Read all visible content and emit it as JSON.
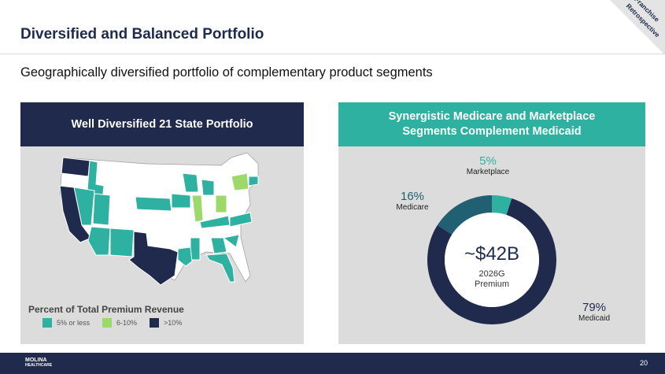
{
  "header": {
    "title": "Diversified and Balanced Portfolio",
    "subtitle": "Geographically diversified portfolio of complementary product segments",
    "corner_tag": [
      "Franchise",
      "Retrospective"
    ]
  },
  "left_panel": {
    "heading": "Well Diversified 21 State Portfolio",
    "legend_title": "Percent of Total Premium Revenue",
    "legend": [
      {
        "label": "5% or less",
        "color": "#2fb1a1"
      },
      {
        "label": "6-10%",
        "color": "#9dd86a"
      },
      {
        "label": ">10%",
        "color": "#1f2a4d"
      }
    ]
  },
  "right_panel": {
    "heading_line1": "Synergistic Medicare and Marketplace",
    "heading_line2": "Segments Complement Medicaid",
    "center_value": "~$42B",
    "center_sub1": "2026G",
    "center_sub2": "Premium",
    "segments": [
      {
        "name": "Medicaid",
        "pct": "79%",
        "value": 79,
        "color": "#1f2a4d",
        "pct_color": "#1f2a4d"
      },
      {
        "name": "Medicare",
        "pct": "16%",
        "value": 16,
        "color": "#215f73",
        "pct_color": "#215f73"
      },
      {
        "name": "Marketplace",
        "pct": "5%",
        "value": 5,
        "color": "#2fb1a1",
        "pct_color": "#2fb1a1"
      }
    ]
  },
  "footer": {
    "logo_line1": "MOLINA",
    "logo_line2": "HEALTHCARE",
    "page": "20"
  }
}
